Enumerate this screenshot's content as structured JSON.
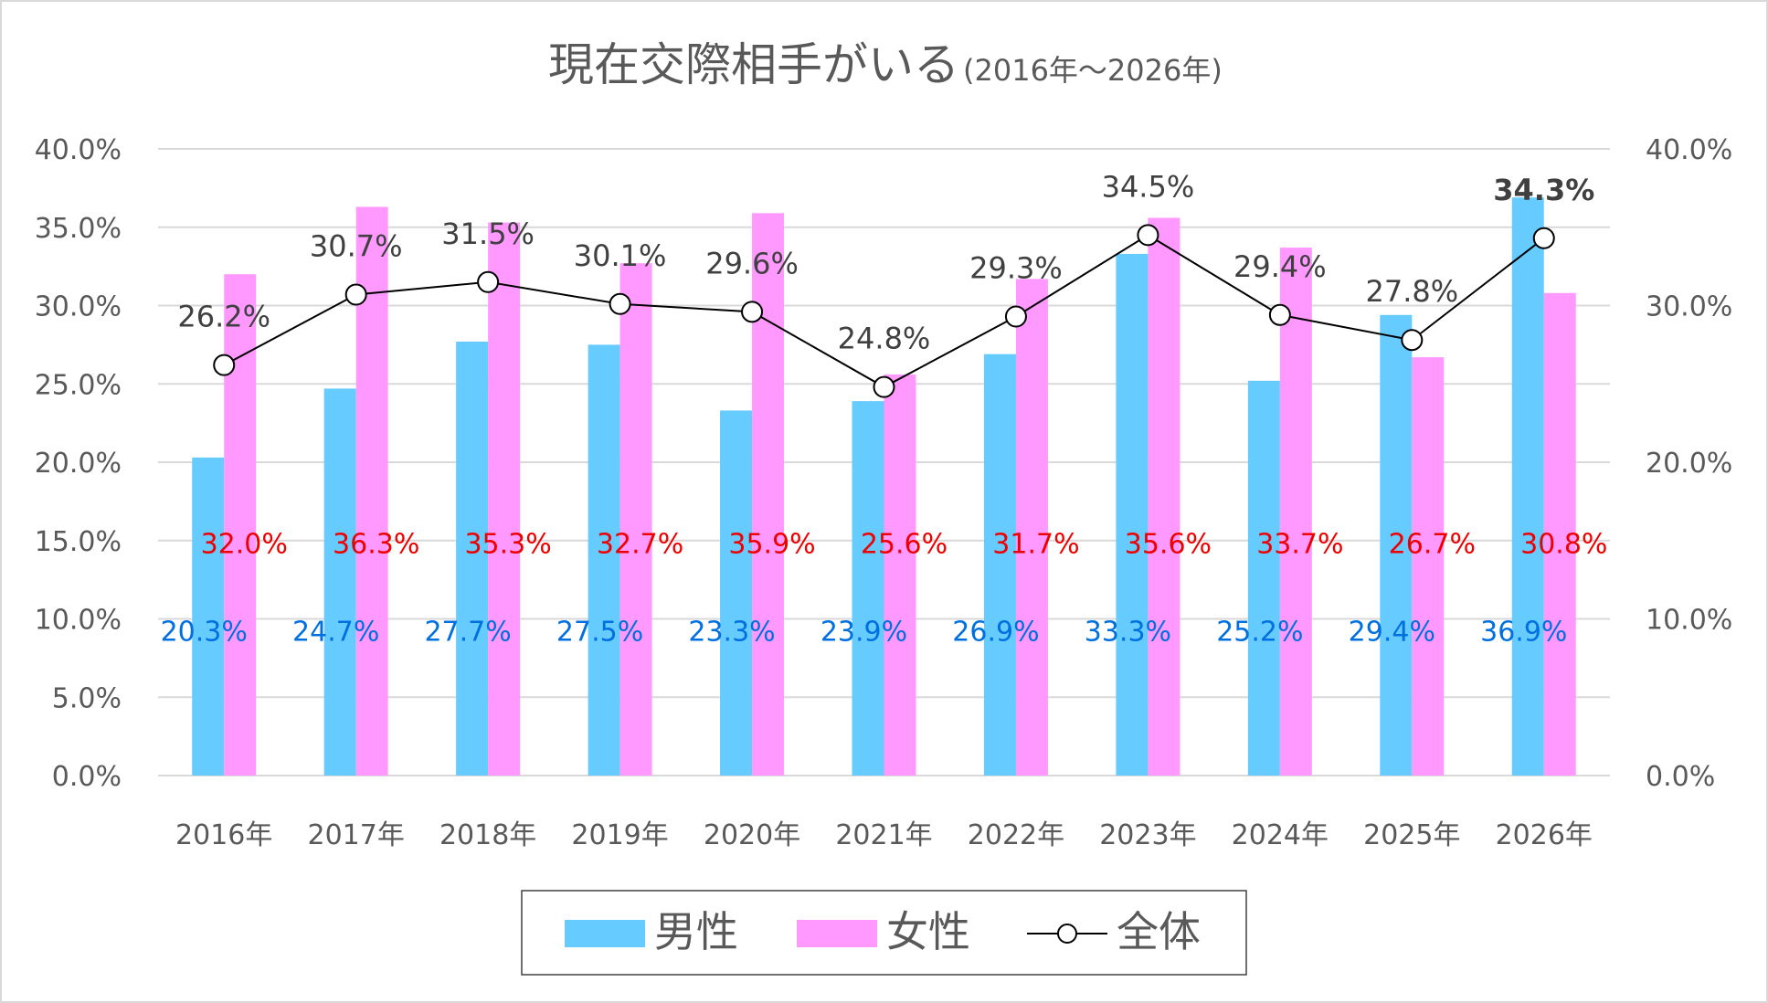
{
  "chart_data": {
    "type": "bar+line",
    "title": "現在交際相手がいる",
    "subtitle": "(2016年～2026年)",
    "categories": [
      "2016年",
      "2017年",
      "2018年",
      "2019年",
      "2020年",
      "2021年",
      "2022年",
      "2023年",
      "2024年",
      "2025年",
      "2026年"
    ],
    "ylim": [
      0,
      40
    ],
    "y_ticks": [
      "0.0%",
      "5.0%",
      "10.0%",
      "15.0%",
      "20.0%",
      "25.0%",
      "30.0%",
      "35.0%",
      "40.0%"
    ],
    "y2_ticks": [
      "0.0%",
      "10.0%",
      "20.0%",
      "30.0%",
      "40.0%"
    ],
    "grid": true,
    "legend_placement": "bottom",
    "series": [
      {
        "name": "男性",
        "type": "bar",
        "color": "#66ccff",
        "label_color": "#0070e0",
        "values": [
          20.3,
          24.7,
          27.7,
          27.5,
          23.3,
          23.9,
          26.9,
          33.3,
          25.2,
          29.4,
          36.9
        ],
        "labels": [
          "20.3%",
          "24.7%",
          "27.7%",
          "27.5%",
          "23.3%",
          "23.9%",
          "26.9%",
          "33.3%",
          "25.2%",
          "29.4%",
          "36.9%"
        ]
      },
      {
        "name": "女性",
        "type": "bar",
        "color": "#ff99ff",
        "label_color": "#ee0000",
        "values": [
          32.0,
          36.3,
          35.3,
          32.7,
          35.9,
          25.6,
          31.7,
          35.6,
          33.7,
          26.7,
          30.8
        ],
        "labels": [
          "32.0%",
          "36.3%",
          "35.3%",
          "32.7%",
          "35.9%",
          "25.6%",
          "31.7%",
          "35.6%",
          "33.7%",
          "26.7%",
          "30.8%"
        ]
      },
      {
        "name": "全体",
        "type": "line",
        "color": "#000000",
        "label_color": "#404040",
        "values": [
          26.2,
          30.7,
          31.5,
          30.1,
          29.6,
          24.8,
          29.3,
          34.5,
          29.4,
          27.8,
          34.3
        ],
        "labels": [
          "26.2%",
          "30.7%",
          "31.5%",
          "30.1%",
          "29.6%",
          "24.8%",
          "29.3%",
          "34.5%",
          "29.4%",
          "27.8%",
          "34.3%"
        ]
      }
    ]
  }
}
